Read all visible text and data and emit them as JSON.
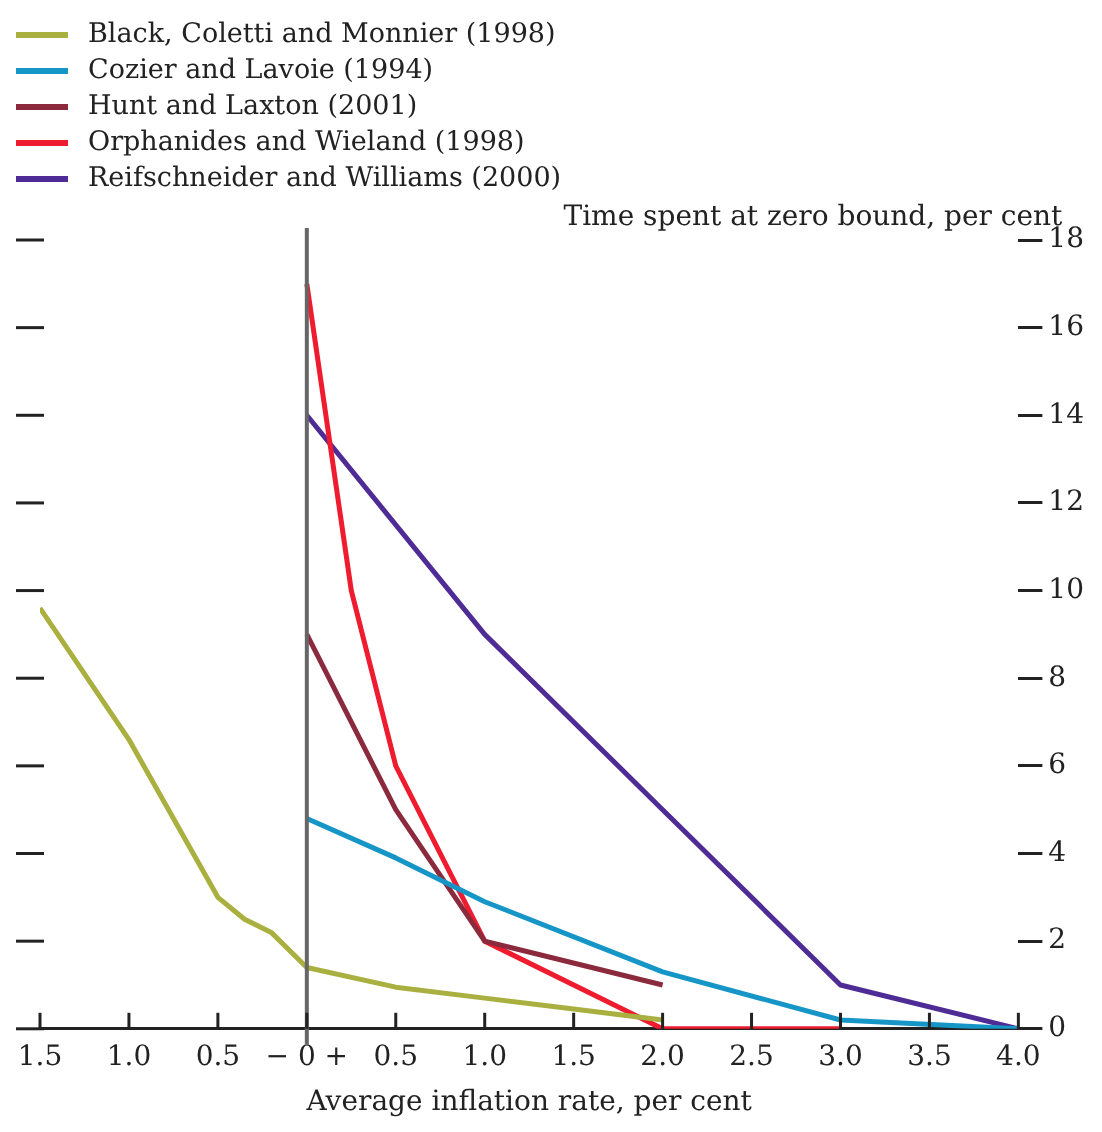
{
  "chart_data": {
    "type": "line",
    "xlabel": "Average inflation rate, per cent",
    "ylabel": "Time spent at zero bound, per cent",
    "xlim": [
      -1.5,
      4.0
    ],
    "xticks": [
      {
        "value": -1.5,
        "label": "1.5"
      },
      {
        "value": -1.0,
        "label": "1.0"
      },
      {
        "value": -0.5,
        "label": "0.5"
      },
      {
        "value": 0,
        "label": "− 0 +"
      },
      0.5,
      {
        "value": 1,
        "label": "1.0"
      },
      1.5,
      {
        "value": 2,
        "label": "2.0"
      },
      2.5,
      {
        "value": 3,
        "label": "3.0"
      },
      3.5,
      {
        "value": 4,
        "label": "4.0"
      }
    ],
    "ylim": [
      0,
      18
    ],
    "yticks": [
      0,
      2,
      4,
      6,
      8,
      10,
      12,
      14,
      16,
      18
    ],
    "grid": false,
    "legend": "top left",
    "marker": "none",
    "line_style": "solid",
    "ref_lines": [
      {
        "axis": "x",
        "value": 0,
        "color": "#666666"
      }
    ],
    "series": [
      {
        "name": "Black, Coletti and Monnier (1998)",
        "color": "#a9b040",
        "x": [
          -1.5,
          -1.0,
          -0.5,
          -0.35,
          -0.2,
          0,
          0.5,
          1.0,
          1.5,
          2.0
        ],
        "values": [
          9.6,
          6.6,
          3.0,
          2.5,
          2.2,
          1.4,
          0.95,
          0.7,
          0.45,
          0.2
        ]
      },
      {
        "name": "Cozier and Lavoie (1994)",
        "color": "#1596c6",
        "x": [
          0,
          0.5,
          1.0,
          2.0,
          3.0,
          4.0
        ],
        "values": [
          4.8,
          3.9,
          2.9,
          1.3,
          0.2,
          0
        ]
      },
      {
        "name": "Hunt and Laxton (2001)",
        "color": "#8b2a3c",
        "x": [
          0,
          0.5,
          1.0,
          2.0
        ],
        "values": [
          9,
          5,
          2,
          1.0
        ]
      },
      {
        "name": "Orphanides and Wieland (1998)",
        "color": "#ee1c2e",
        "x": [
          0,
          0.25,
          0.5,
          1.0,
          2.0,
          3.0
        ],
        "values": [
          17,
          10,
          6,
          2,
          0,
          0
        ]
      },
      {
        "name": "Reifschneider and Williams (2000)",
        "color": "#4f2b95",
        "x": [
          0,
          1.0,
          2.0,
          3.0,
          4.0
        ],
        "values": [
          14,
          9,
          5,
          1,
          0
        ]
      }
    ]
  }
}
